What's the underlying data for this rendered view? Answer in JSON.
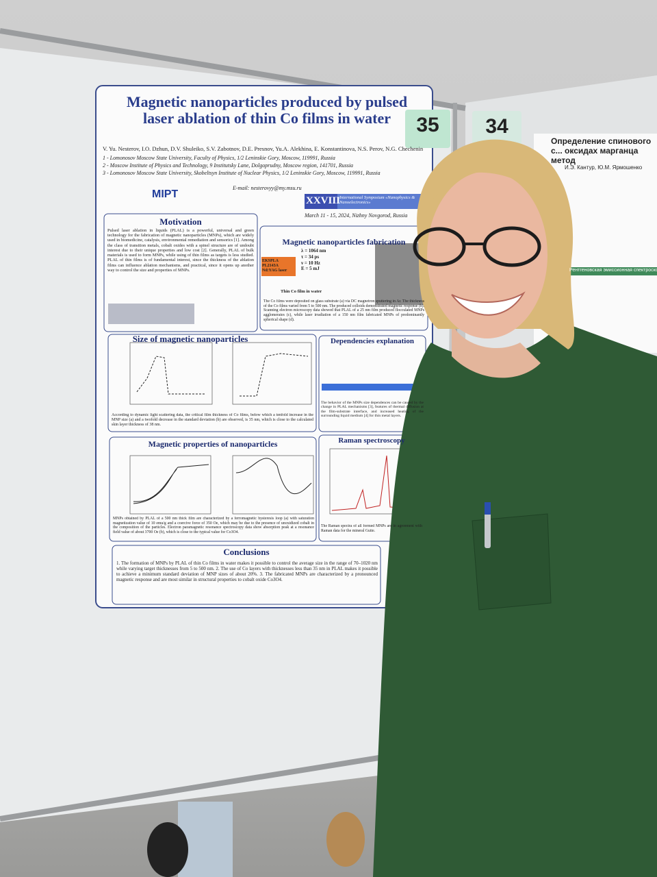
{
  "poster": {
    "title": "Magnetic nanoparticles produced by pulsed laser ablation of thin Co films in water",
    "authors": "V. Yu. Nesterov, I.O. Dzhun, D.V. Shuleiko, S.V. Zabotnov, D.E. Presnov, Yu.A. Alekhina, E. Konstantinova, N.S. Perov, N.G. Chechenin",
    "affiliations": [
      "1 - Lomonosov Moscow State University, Faculty of Physics, 1/2 Leninskie Gory, Moscow, 119991, Russia",
      "2 - Moscow Institute of Physics and Technology, 9 Institutsky Lane, Dolgoprudny, Moscow region, 141701, Russia",
      "3 - Lomonosov Moscow State University, Skobeltsyn Institute of Nuclear Physics, 1/2 Leninskie Gory, Moscow, 119991, Russia"
    ],
    "logo": "MIPT",
    "email": "E-mail: nesterovyy@my.msu.ru",
    "symposium_number": "XXVIII",
    "symposium_name": "International Symposium «Nanophysics & Nanoelectronics»",
    "dates": "March 11 - 15, 2024, Nizhny Novgorod, Russia",
    "sections": [
      {
        "heading": "Motivation",
        "text": "Pulsed laser ablation in liquids (PLAL) is a powerful, universal and green technology for the fabrication of magnetic nanoparticles (MNPs), which are widely used in biomedicine, catalysis, environmental remediation and sensorics [1]. Among the class of transition metals, cobalt oxides with a spinel structure are of undoubt interest due to their unique properties and low cost [2]. Generally, PLAL of bulk materials is used to form MNPs, while using of thin films as targets is less studied. PLAL of thin films is of fundamental interest, since the thickness of the ablation films can influence ablation mechanisms, and practical, since it opens up another way to control the size and properties of MNPs."
      },
      {
        "heading": "Magnetic nanoparticles fabrication",
        "text": "The Co films were deposited on glass substrate (a) via DC magnetron sputtering in Ar. The thickness of the Co films varied from 5 to 500 nm. The produced colloids demonstrated magnetic response (b). Scanning electron microscopy data showed that PLAL of a 25 nm film produced flocculated MNPs agglomerates (c), while laser irradiation of a 150 nm film fabricated MNPs of predominantly spherical shape (d)."
      },
      {
        "heading": "Size of magnetic nanoparticles",
        "text": "According to dynamic light scattering data, the critical film thickness of Co films, below which a tenfold increase in the MNP size (a) and a twofold decrease in the standard deviation (b) are observed, is 35 nm, which is close to the calculated skin layer thickness of 38 nm."
      },
      {
        "heading": "Dependencies explanation",
        "text": "The behavior of the MNPs size dependences can be caused by the change in PLAL mechanisms [3], features of thermal diffusion at the film-substrate interface, and increased heating of the surrounding liquid medium [4] for thin metal layers."
      },
      {
        "heading": "Magnetic properties of nanoparticles",
        "text": "MNPs obtained by PLAL of a 500 nm thick film are characterized by a ferromagnetic hysteresis loop (a) with saturation magnetization value of 10 emu/g and a coercive force of 350 Oe, which may be due to the presence of unoxidized cobalt in the composition of the particles. Electron paramagnetic resonance spectroscopy data show absorption peak at a resonance field value of about 3700 Oe (b), which is close to the typical value for Co3O4."
      },
      {
        "heading": "Raman spectroscopy",
        "text": "The Raman spectra of all formed MNPs are in agreement with Raman data for the mineral Guite."
      },
      {
        "heading": "Conclusions",
        "text": "1. The formation of MNPs by PLAL of thin Co films in water makes it possible to control the average size in the range of 70–1020 nm while varying target thicknesses from 5 to 500 nm. 2. The use of Co layers with thicknesses less than 35 nm in PLAL makes it possible to achieve a minimum standard deviation of MNP sizes of about 20%. 3. The fabricated MNPs are characterized by a pronounced magnetic response and are most similar in structural properties to cobalt oxide Co3O4."
      }
    ],
    "laser_params": [
      "λ = 1064 nm",
      "τ = 34 ps",
      "ν = 10 Hz",
      "E = 5 mJ"
    ],
    "laser_label": "EKSPLA PL2143A Nd:YAG laser",
    "target_label": "Thin Co film in water"
  },
  "board_numbers": [
    "35",
    "34"
  ],
  "neighbor_poster": {
    "title": "Определение спинового с... оксидах марганца метод",
    "authors": "И.Э. Кантур, Ю.М. Ярмошенко",
    "section": "Рентгеновская эмиссионная спектроскопия (XES)"
  }
}
